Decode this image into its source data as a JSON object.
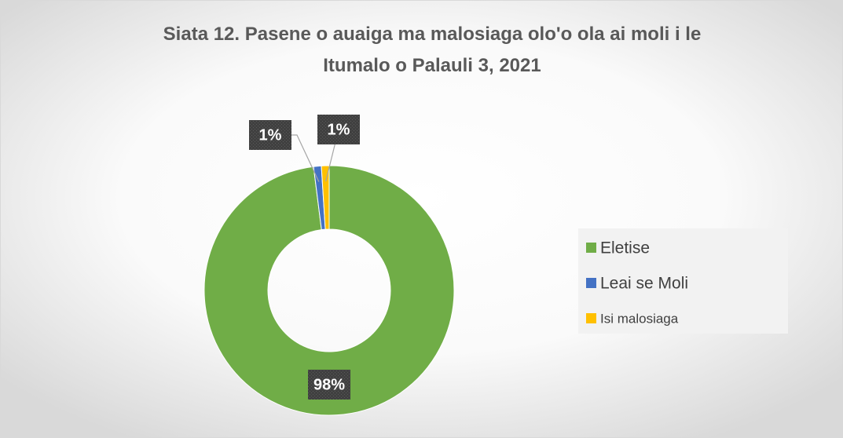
{
  "chart_data": {
    "type": "donut",
    "title": "Siata 12. Pasene o auaiga ma malosiaga olo'o ola ai moli i le Itumalo o Palauli 3, 2021",
    "categories": [
      "Eletise",
      "Leai se Moli",
      "Isi malosiaga"
    ],
    "values": [
      98,
      1,
      1
    ],
    "value_labels": [
      "98%",
      "1%",
      "1%"
    ],
    "colors": [
      "#70ad47",
      "#4472c4",
      "#ffc000"
    ],
    "legend": "right"
  }
}
